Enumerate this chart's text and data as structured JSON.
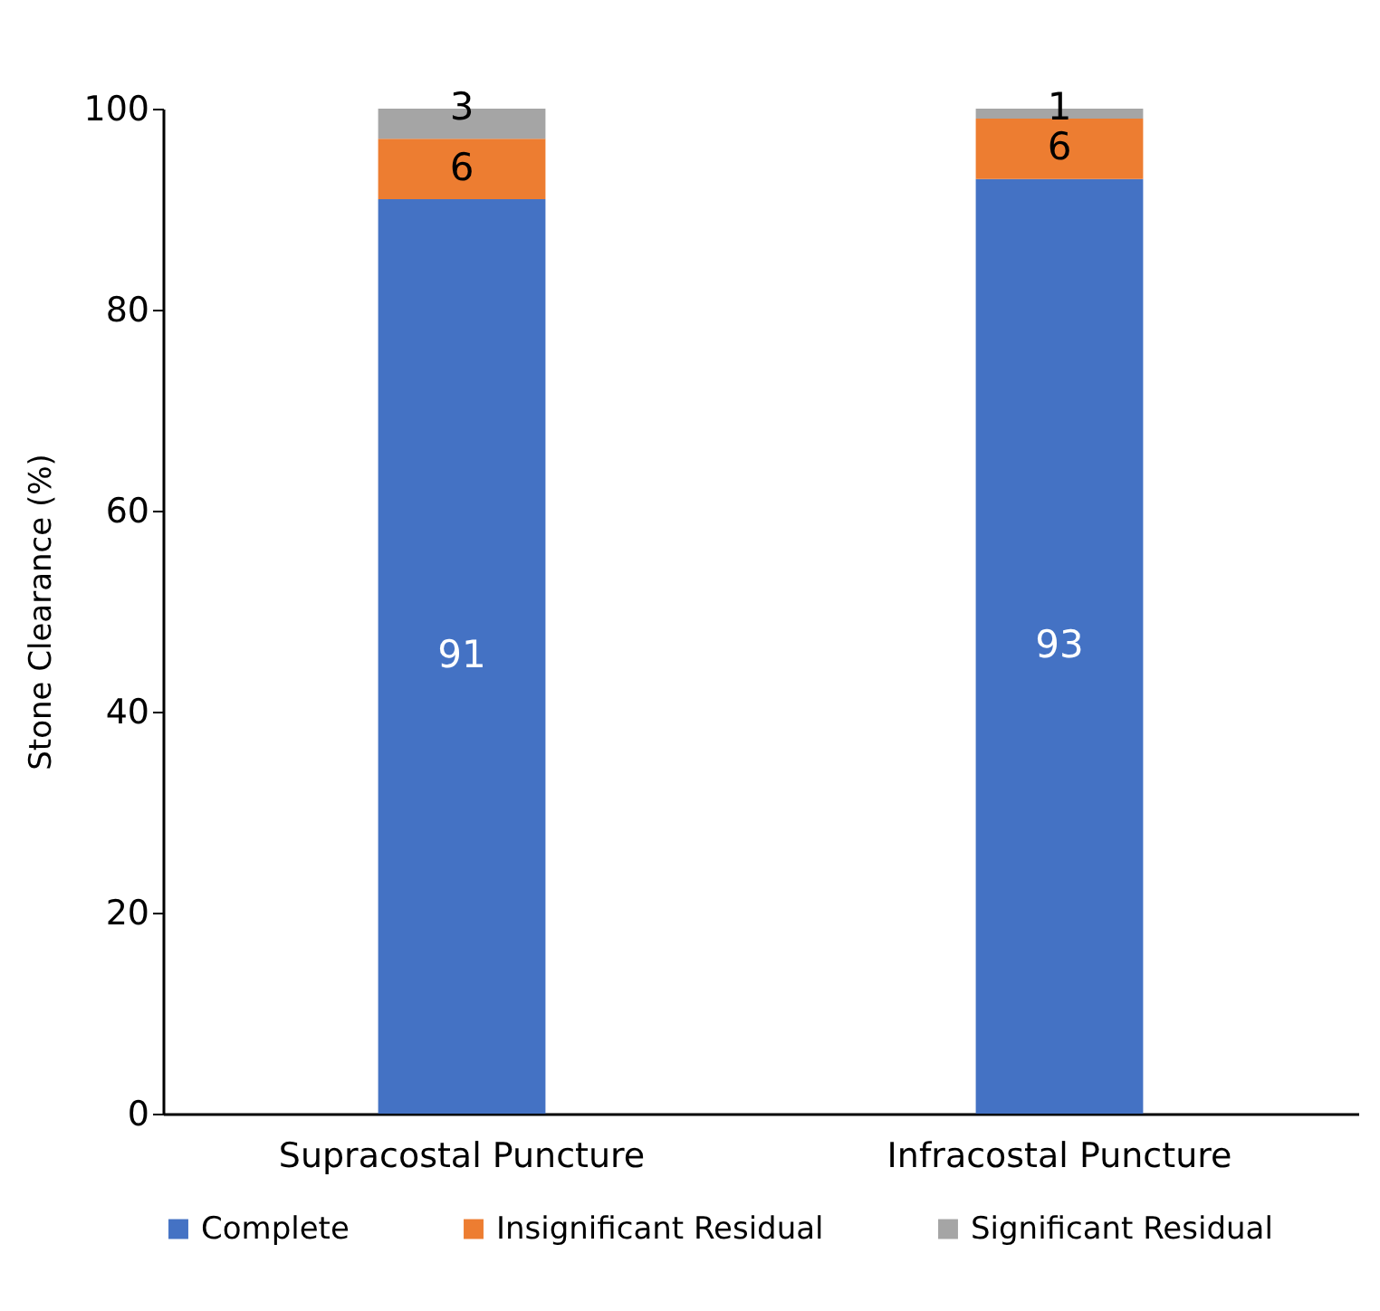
{
  "chart_data": {
    "type": "bar",
    "stacked": true,
    "ylabel": "Stone Clearance (%)",
    "categories": [
      "Supracostal Puncture",
      "Infracostal Puncture"
    ],
    "series": [
      {
        "name": "Complete",
        "color": "#4472c4",
        "values": [
          91,
          93
        ]
      },
      {
        "name": "Insignificant Residual",
        "color": "#ed7d31",
        "values": [
          6,
          6
        ]
      },
      {
        "name": "Significant Residual",
        "color": "#a5a5a5",
        "values": [
          3,
          1
        ]
      }
    ],
    "ylim": [
      0,
      100
    ],
    "yticks": [
      0,
      20,
      40,
      60,
      80,
      100
    ],
    "grid": false,
    "legend": "bottom",
    "data_labels": true
  }
}
